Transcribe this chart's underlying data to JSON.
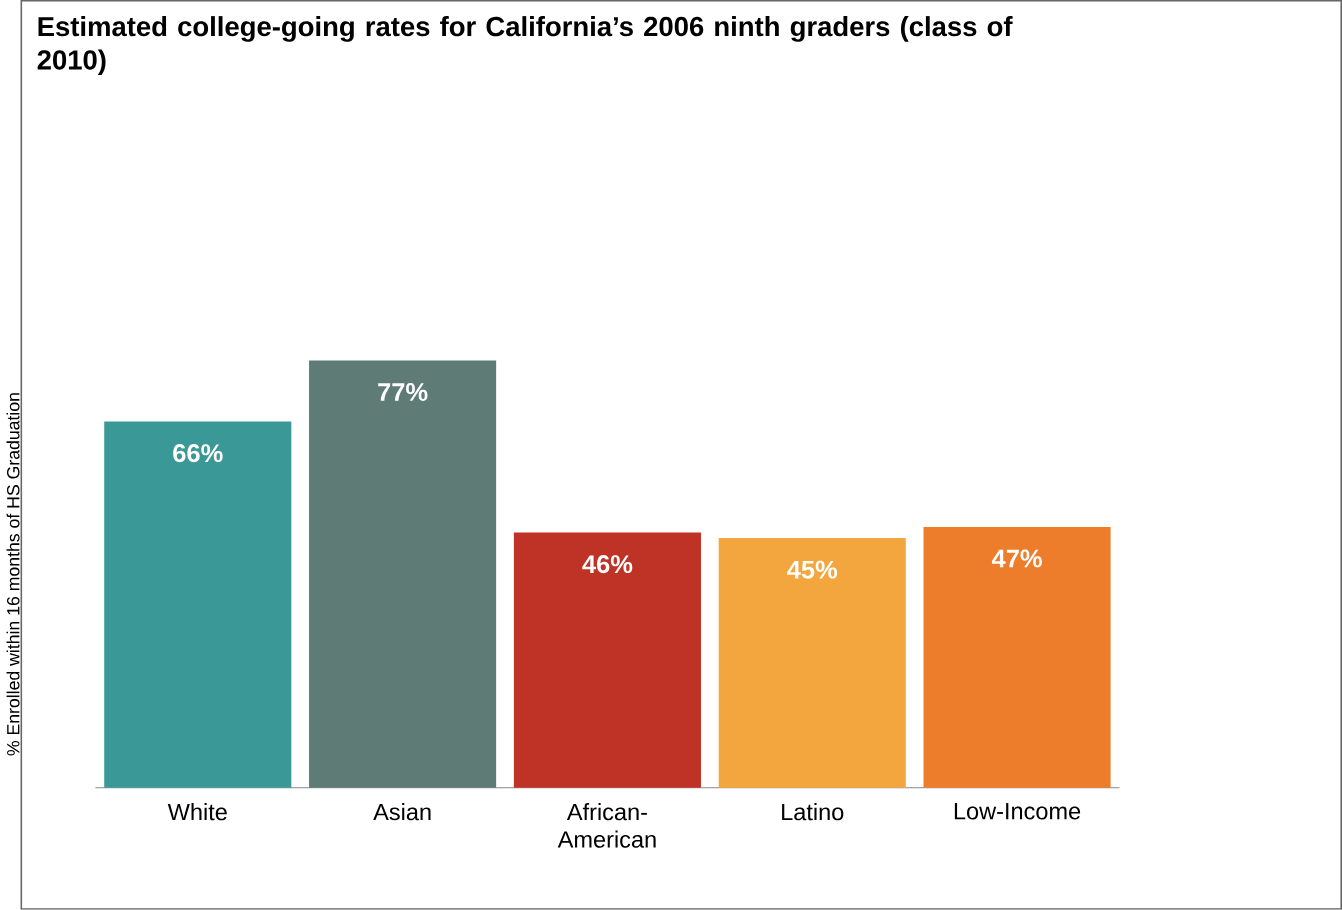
{
  "chart_data": {
    "type": "bar",
    "title": "Estimated college-going rates for California’s 2006 ninth graders (class of 2010)",
    "ylabel": "% Enrolled within 16 months of HS Graduation",
    "categories": [
      "White",
      "Asian",
      "African-American",
      "Latino",
      "Low-Income"
    ],
    "values": [
      66,
      77,
      46,
      45,
      47
    ],
    "colors": [
      "#3a9896",
      "#5e7b76",
      "#bf3326",
      "#f4a63e",
      "#ee7d2b"
    ],
    "value_labels": [
      "66%",
      "77%",
      "46%",
      "45%",
      "47%"
    ],
    "tick_labels": "x"
  }
}
